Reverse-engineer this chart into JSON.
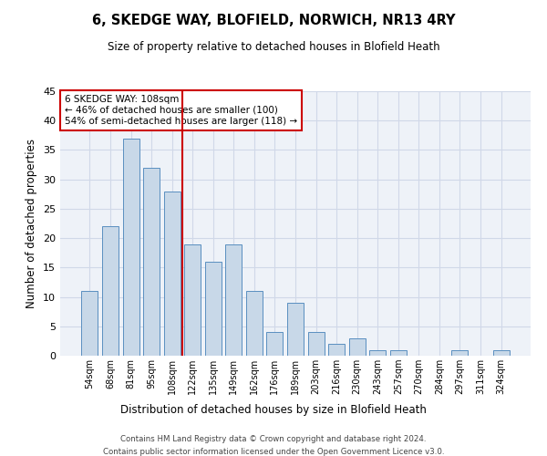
{
  "title": "6, SKEDGE WAY, BLOFIELD, NORWICH, NR13 4RY",
  "subtitle": "Size of property relative to detached houses in Blofield Heath",
  "xlabel": "Distribution of detached houses by size in Blofield Heath",
  "ylabel": "Number of detached properties",
  "footnote1": "Contains HM Land Registry data © Crown copyright and database right 2024.",
  "footnote2": "Contains public sector information licensed under the Open Government Licence v3.0.",
  "annotation_line1": "6 SKEDGE WAY: 108sqm",
  "annotation_line2": "← 46% of detached houses are smaller (100)",
  "annotation_line3": "54% of semi-detached houses are larger (118) →",
  "bar_color": "#c8d8e8",
  "bar_edge_color": "#5a8fc0",
  "vline_color": "#cc0000",
  "categories": [
    "54sqm",
    "68sqm",
    "81sqm",
    "95sqm",
    "108sqm",
    "122sqm",
    "135sqm",
    "149sqm",
    "162sqm",
    "176sqm",
    "189sqm",
    "203sqm",
    "216sqm",
    "230sqm",
    "243sqm",
    "257sqm",
    "270sqm",
    "284sqm",
    "297sqm",
    "311sqm",
    "324sqm"
  ],
  "values": [
    11,
    22,
    37,
    32,
    28,
    19,
    16,
    19,
    11,
    4,
    9,
    4,
    2,
    3,
    1,
    1,
    0,
    0,
    1,
    0,
    1
  ],
  "ylim": [
    0,
    45
  ],
  "yticks": [
    0,
    5,
    10,
    15,
    20,
    25,
    30,
    35,
    40,
    45
  ],
  "grid_color": "#d0d8e8",
  "bg_color": "#eef2f8",
  "bar_width": 0.8,
  "annotation_box_color": "#ffffff",
  "annotation_box_edge": "#cc0000"
}
